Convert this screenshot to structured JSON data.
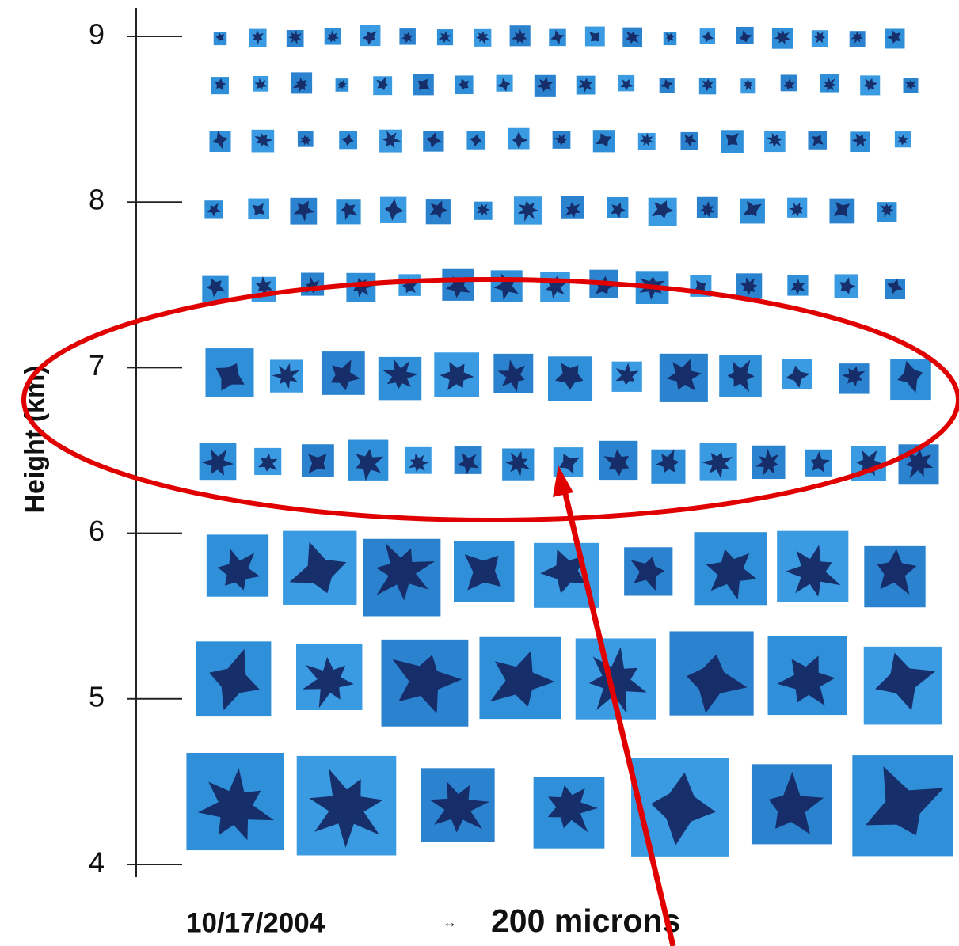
{
  "axis": {
    "label": "Height (km)",
    "ticks": [
      9,
      8,
      7,
      6,
      5,
      4
    ]
  },
  "footer": {
    "date": "10/17/2004",
    "scale_symbol": "↔",
    "scale": "200 microns"
  }
}
